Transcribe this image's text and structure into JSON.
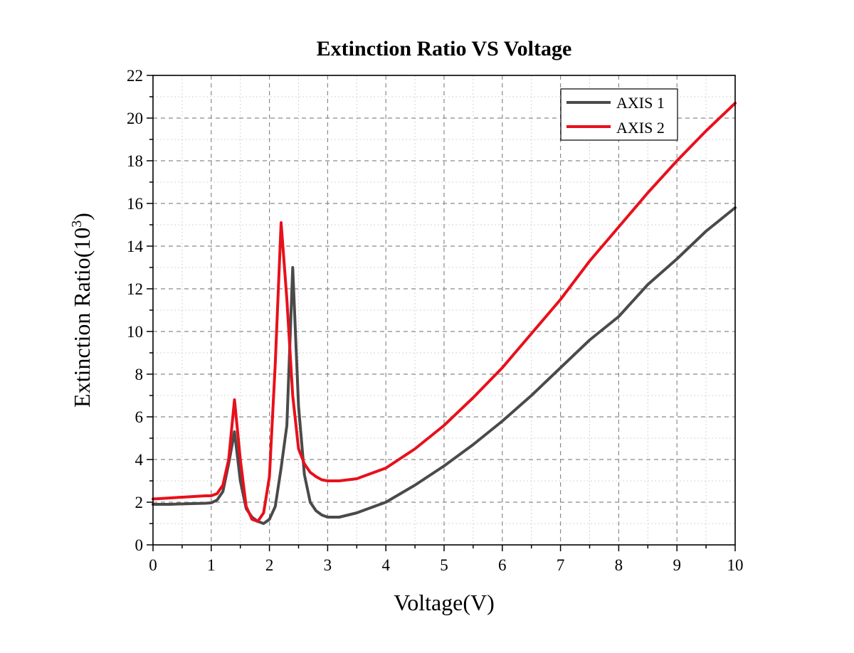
{
  "chart_data": {
    "type": "line",
    "title": "Extinction Ratio  VS  Voltage",
    "xlabel": "Voltage(V)",
    "ylabel_main": "Extinction Ratio(10",
    "ylabel_sup": "3",
    "ylabel_close": ")",
    "xlim": [
      0,
      10
    ],
    "ylim": [
      0,
      22
    ],
    "x_ticks": [
      0,
      1,
      2,
      3,
      4,
      5,
      6,
      7,
      8,
      9,
      10
    ],
    "y_ticks": [
      0,
      2,
      4,
      6,
      8,
      10,
      12,
      14,
      16,
      18,
      20,
      22
    ],
    "grid": true,
    "legend_position": "top-right",
    "series": [
      {
        "name": "AXIS 1",
        "color": "#4a4a4a",
        "x": [
          0,
          0.3,
          0.6,
          0.9,
          1.0,
          1.1,
          1.2,
          1.3,
          1.4,
          1.5,
          1.6,
          1.7,
          1.8,
          1.9,
          2.0,
          2.1,
          2.2,
          2.3,
          2.4,
          2.5,
          2.6,
          2.7,
          2.8,
          2.9,
          3.0,
          3.2,
          3.5,
          4.0,
          4.5,
          5.0,
          5.5,
          6.0,
          6.5,
          7.0,
          7.5,
          8.0,
          8.5,
          9.0,
          9.5,
          10.0
        ],
        "y": [
          1.9,
          1.9,
          1.93,
          1.95,
          1.97,
          2.1,
          2.5,
          3.8,
          5.3,
          3.0,
          1.7,
          1.3,
          1.1,
          1.0,
          1.2,
          1.8,
          3.6,
          5.6,
          13.0,
          6.5,
          3.3,
          2.0,
          1.6,
          1.4,
          1.3,
          1.3,
          1.5,
          2.0,
          2.8,
          3.7,
          4.7,
          5.8,
          7.0,
          8.3,
          9.6,
          10.7,
          12.2,
          13.4,
          14.7,
          15.8
        ]
      },
      {
        "name": "AXIS 2",
        "color": "#e8101a",
        "x": [
          0,
          0.3,
          0.6,
          0.9,
          1.0,
          1.1,
          1.2,
          1.3,
          1.4,
          1.5,
          1.6,
          1.7,
          1.8,
          1.9,
          2.0,
          2.1,
          2.2,
          2.3,
          2.4,
          2.5,
          2.6,
          2.7,
          2.8,
          2.9,
          3.0,
          3.2,
          3.5,
          4.0,
          4.5,
          5.0,
          5.5,
          6.0,
          6.5,
          7.0,
          7.5,
          8.0,
          8.5,
          9.0,
          9.5,
          10.0
        ],
        "y": [
          2.15,
          2.2,
          2.25,
          2.3,
          2.3,
          2.4,
          2.8,
          4.0,
          6.8,
          4.0,
          1.8,
          1.2,
          1.1,
          1.5,
          3.2,
          8.5,
          15.1,
          11.5,
          7.0,
          4.5,
          3.8,
          3.4,
          3.2,
          3.05,
          3.0,
          3.0,
          3.1,
          3.6,
          4.5,
          5.6,
          6.9,
          8.3,
          9.9,
          11.5,
          13.3,
          14.9,
          16.5,
          18.0,
          19.4,
          20.7
        ]
      }
    ]
  }
}
